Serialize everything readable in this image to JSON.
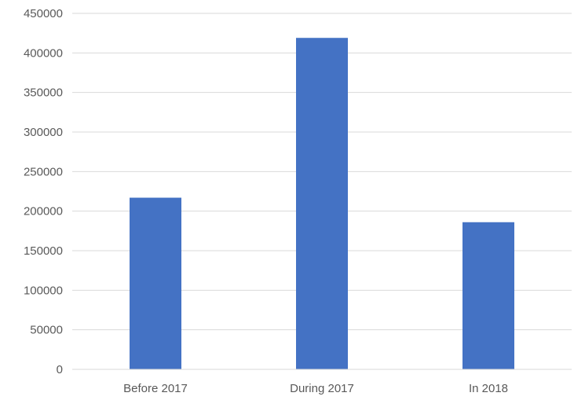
{
  "chart_data": {
    "type": "bar",
    "title": "",
    "xlabel": "",
    "ylabel": "",
    "categories": [
      "Before 2017",
      "During 2017",
      "In 2018"
    ],
    "series": [
      {
        "values": [
          217000,
          419000,
          186000
        ],
        "color": "#4472c4"
      }
    ],
    "ylim": [
      0,
      450000
    ],
    "yticks": [
      0,
      50000,
      100000,
      150000,
      200000,
      250000,
      300000,
      350000,
      400000,
      450000
    ],
    "grid": true,
    "legend": "none"
  }
}
